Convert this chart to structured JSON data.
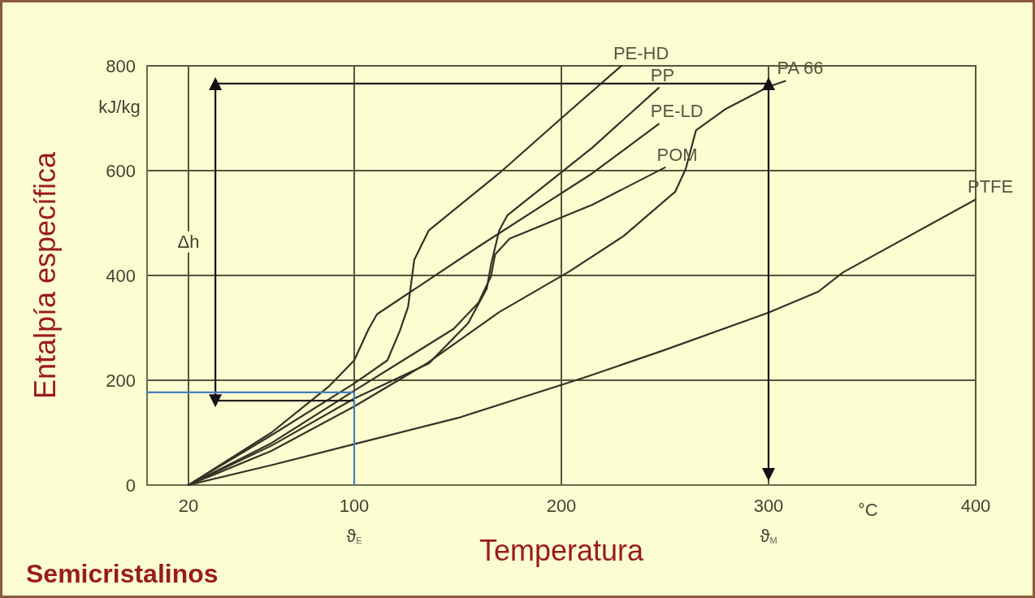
{
  "chart_data": {
    "type": "line",
    "title": "Semicristalinos",
    "xlabel": "Temperatura",
    "ylabel": "Entalpía específica",
    "xlim": [
      0,
      400
    ],
    "ylim": [
      0,
      800
    ],
    "xticks": [
      20,
      100,
      200,
      300,
      400
    ],
    "yticks": [
      0,
      200,
      400,
      600,
      800
    ],
    "grid": true,
    "legend": false,
    "marker": "none",
    "line_style": "solid",
    "annotations": [
      "kJ/kg",
      "°C",
      "Δh",
      "ϑ$_{E}$",
      "ϑ$_{M}$"
    ],
    "series": [
      {
        "name": "PE-HD",
        "color": "#333326",
        "x": [
          20,
          60,
          100,
          116,
          122,
          126,
          129,
          136,
          170,
          200,
          229
        ],
        "values": [
          0,
          95,
          194,
          238,
          294,
          340,
          430,
          486,
          595,
          700,
          800
        ]
      },
      {
        "name": "PE-LD",
        "color": "#333326",
        "x": [
          20,
          60,
          88,
          100,
          107,
          111,
          160,
          215,
          247
        ],
        "values": [
          0,
          100,
          189,
          238,
          298,
          326,
          455,
          595,
          689
        ]
      },
      {
        "name": "PP",
        "color": "#333326",
        "x": [
          20,
          60,
          100,
          136,
          155,
          164,
          166,
          170,
          174,
          215,
          247
        ],
        "values": [
          0,
          75,
          165,
          232,
          309,
          375,
          420,
          486,
          515,
          644,
          758
        ]
      },
      {
        "name": "POM",
        "color": "#333326",
        "x": [
          20,
          60,
          100,
          148,
          160,
          166,
          168,
          175,
          215,
          250
        ],
        "values": [
          0,
          80,
          180,
          298,
          348,
          398,
          440,
          470,
          535,
          606
        ]
      },
      {
        "name": "PA 66",
        "color": "#333326",
        "x": [
          20,
          60,
          100,
          135,
          170,
          204,
          230,
          255,
          260,
          265,
          279,
          300,
          308
        ],
        "values": [
          0,
          65,
          150,
          232,
          330,
          408,
          475,
          560,
          603,
          677,
          717,
          760,
          771
        ]
      },
      {
        "name": "PTFE",
        "color": "#333326",
        "x": [
          20,
          60,
          100,
          150,
          211,
          250,
          300,
          324,
          336,
          400
        ],
        "values": [
          0,
          38,
          78,
          128,
          205,
          258,
          329,
          369,
          406,
          545
        ]
      },
      {
        "color": "#222222",
        "x": [
          33,
          300
        ],
        "values": [
          766,
          766
        ]
      },
      {
        "color": "#222222",
        "x": [
          33,
          100
        ],
        "values": [
          161,
          161
        ]
      },
      {
        "color": "#111111",
        "marker": "triangle",
        "x": [
          33,
          33
        ],
        "values": [
          161,
          766
        ]
      },
      {
        "color": "#111111",
        "marker": "triangle",
        "x": [
          300,
          300
        ],
        "values": [
          766,
          20
        ]
      },
      {
        "color": "#4a7cc0",
        "x": [
          0,
          100,
          100
        ],
        "values": [
          177,
          177,
          0
        ]
      }
    ]
  }
}
